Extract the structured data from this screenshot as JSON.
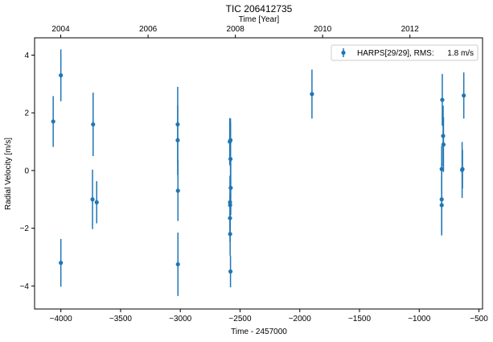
{
  "chart_data": {
    "type": "scatter",
    "title": "TIC 206412735",
    "xlabel": "Time - 2457000",
    "ylabel": "Radial Velocity [m/s]",
    "top_xlabel": "Time [Year]",
    "xlim": [
      -4220,
      -470
    ],
    "ylim": [
      -4.8,
      4.6
    ],
    "x_ticks": [
      -4000,
      -3500,
      -3000,
      -2500,
      -2000,
      -1500,
      -1000,
      -500
    ],
    "x_tick_labels": [
      "−4000",
      "−3500",
      "−3000",
      "−2500",
      "−2000",
      "−1500",
      "−1000",
      "−500"
    ],
    "y_ticks": [
      -4,
      -2,
      0,
      2,
      4
    ],
    "y_tick_labels": [
      "−4",
      "−2",
      "0",
      "2",
      "4"
    ],
    "top_ticks": [
      {
        "x": -4001,
        "label": "2004"
      },
      {
        "x": -3270,
        "label": "2006"
      },
      {
        "x": -2539,
        "label": "2008"
      },
      {
        "x": -1809,
        "label": "2010"
      },
      {
        "x": -1078,
        "label": "2012"
      }
    ],
    "grid": false,
    "legend_position": "top-right",
    "color": "#1f77b4",
    "series": [
      {
        "name": "HARPS[29/29], RMS:      1.8 m/s",
        "points": [
          {
            "x": -4064,
            "y": 1.7,
            "err": 0.88
          },
          {
            "x": -4000,
            "y": 3.3,
            "err": 0.9
          },
          {
            "x": -4000,
            "y": -3.2,
            "err": 0.83
          },
          {
            "x": -3735,
            "y": -1.0,
            "err": 1.03
          },
          {
            "x": -3730,
            "y": 1.6,
            "err": 1.1
          },
          {
            "x": -3700,
            "y": -1.1,
            "err": 0.73
          },
          {
            "x": -3022,
            "y": 1.6,
            "err": 1.3
          },
          {
            "x": -3022,
            "y": 1.05,
            "err": 1.2
          },
          {
            "x": -3020,
            "y": -0.7,
            "err": 1.05
          },
          {
            "x": -3020,
            "y": -3.25,
            "err": 1.1
          },
          {
            "x": -2586,
            "y": 1.0,
            "err": 0.82
          },
          {
            "x": -2580,
            "y": 1.05,
            "err": 0.75
          },
          {
            "x": -2580,
            "y": 0.4,
            "err": 1.25
          },
          {
            "x": -2578,
            "y": -0.6,
            "err": 0.95
          },
          {
            "x": -2584,
            "y": -1.1,
            "err": 0.92
          },
          {
            "x": -2583,
            "y": -1.2,
            "err": 0.95
          },
          {
            "x": -2584,
            "y": -1.65,
            "err": 0.82
          },
          {
            "x": -2583,
            "y": -2.2,
            "err": 0.75
          },
          {
            "x": -2580,
            "y": -3.5,
            "err": 0.55
          },
          {
            "x": -1898,
            "y": 2.65,
            "err": 0.85
          },
          {
            "x": -807,
            "y": 2.45,
            "err": 0.9
          },
          {
            "x": -800,
            "y": 1.2,
            "err": 1.05
          },
          {
            "x": -797,
            "y": 0.9,
            "err": 0.95
          },
          {
            "x": -812,
            "y": 0.05,
            "err": 0.8
          },
          {
            "x": -812,
            "y": -1.0,
            "err": 1.25
          },
          {
            "x": -812,
            "y": -1.2,
            "err": 1.0
          },
          {
            "x": -641,
            "y": 0.02,
            "err": 0.97
          },
          {
            "x": -638,
            "y": 0.05,
            "err": 0.67
          },
          {
            "x": -627,
            "y": 2.6,
            "err": 0.8
          }
        ]
      }
    ]
  }
}
